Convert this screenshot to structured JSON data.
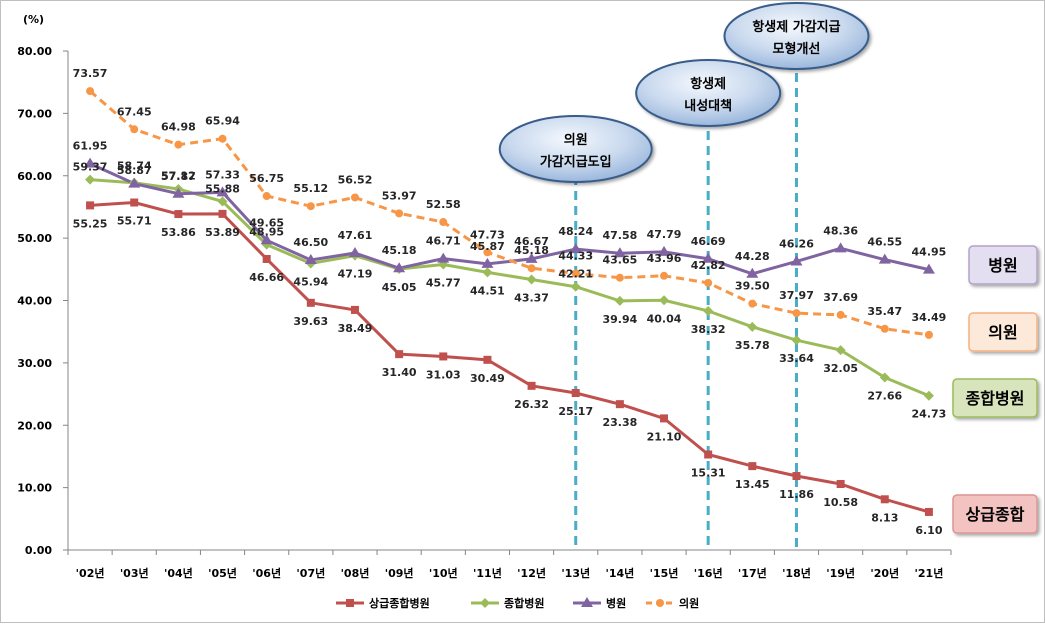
{
  "chart_data": {
    "type": "line",
    "y_unit_label": "(%)",
    "categories": [
      "'02년",
      "'03년",
      "'04년",
      "'05년",
      "'06년",
      "'07년",
      "'08년",
      "'09년",
      "'10년",
      "'11년",
      "'12년",
      "'13년",
      "'14년",
      "'15년",
      "'16년",
      "'17년",
      "'18년",
      "'19년",
      "'20년",
      "'21년"
    ],
    "y_ticks": [
      "0.00",
      "10.00",
      "20.00",
      "30.00",
      "40.00",
      "50.00",
      "60.00",
      "70.00",
      "80.00"
    ],
    "ylim": [
      0,
      80
    ],
    "grid": false,
    "legend_position": "bottom",
    "series": [
      {
        "name": "상급종합병원",
        "color": "#c0504d",
        "marker": "square",
        "dashed": false,
        "values": [
          55.25,
          55.71,
          53.86,
          53.89,
          46.66,
          39.63,
          38.49,
          31.4,
          31.03,
          30.49,
          26.32,
          25.17,
          23.38,
          21.1,
          15.31,
          13.45,
          11.86,
          10.58,
          8.13,
          6.1
        ],
        "labels": [
          "55.25",
          "55.71",
          "53.86",
          "53.89",
          "46.66",
          "39.63",
          "38.49",
          "31.40",
          "31.03",
          "30.49",
          "26.32",
          "25.17",
          "23.38",
          "21.10",
          "15.31",
          "13.45",
          "11.86",
          "10.58",
          "8.13",
          "6.10"
        ]
      },
      {
        "name": "종합병원",
        "color": "#9bbb59",
        "marker": "diamond",
        "dashed": false,
        "values": [
          59.37,
          58.87,
          57.87,
          55.88,
          48.95,
          45.94,
          47.19,
          45.05,
          45.77,
          44.51,
          43.37,
          42.21,
          39.94,
          40.04,
          38.32,
          35.78,
          33.64,
          32.05,
          27.66,
          24.73
        ],
        "labels": [
          "59.37",
          "58.87",
          "57.87",
          "55.88",
          "48.95",
          "45.94",
          "47.19",
          "45.05",
          "45.77",
          "44.51",
          "43.37",
          "42.21",
          "39.94",
          "40.04",
          "38.32",
          "35.78",
          "33.64",
          "32.05",
          "27.66",
          "24.73"
        ]
      },
      {
        "name": "병원",
        "color": "#8064a2",
        "marker": "triangle",
        "dashed": false,
        "values": [
          61.95,
          58.74,
          57.12,
          57.33,
          49.65,
          46.5,
          47.61,
          45.18,
          46.71,
          45.87,
          46.67,
          48.24,
          47.58,
          47.79,
          46.69,
          44.28,
          46.26,
          48.36,
          46.55,
          44.95
        ],
        "labels": [
          "61.95",
          "58.74",
          "57.12",
          "57.33",
          "49.65",
          "46.50",
          "47.61",
          "45.18",
          "46.71",
          "45.87",
          "46.67",
          "48.24",
          "47.58",
          "47.79",
          "46.69",
          "44.28",
          "46.26",
          "48.36",
          "46.55",
          "44.95"
        ]
      },
      {
        "name": "의원",
        "color": "#f79646",
        "marker": "circle",
        "dashed": true,
        "values": [
          73.57,
          67.45,
          64.98,
          65.94,
          56.75,
          55.12,
          56.52,
          53.97,
          52.58,
          47.73,
          45.18,
          44.33,
          43.65,
          43.96,
          42.82,
          39.5,
          37.97,
          37.69,
          35.47,
          34.49
        ],
        "labels": [
          "73.57",
          "67.45",
          "64.98",
          "65.94",
          "56.75",
          "55.12",
          "56.52",
          "53.97",
          "52.58",
          "47.73",
          "45.18",
          "44.33",
          "43.65",
          "43.96",
          "42.82",
          "39.50",
          "37.97",
          "37.69",
          "35.47",
          "34.49"
        ]
      }
    ],
    "annotations": [
      {
        "category_index": 11,
        "lines": [
          "의원",
          "가감지급도입"
        ]
      },
      {
        "category_index": 14,
        "lines": [
          "항생제",
          "내성대책"
        ]
      },
      {
        "category_index": 16,
        "lines": [
          "항생제 가감지급",
          "모형개선"
        ]
      }
    ],
    "side_labels": [
      {
        "text": "병원",
        "series": "병원",
        "bg": "#e4dff0",
        "border": "#b3a2c7"
      },
      {
        "text": "의원",
        "series": "의원",
        "bg": "#fde9d9",
        "border": "#f4b183"
      },
      {
        "text": "종합병원",
        "series": "종합병원",
        "bg": "#d8e4bc",
        "border": "#9bbb59"
      },
      {
        "text": "상급종합",
        "series": "상급종합병원",
        "bg": "#f2c3c1",
        "border": "#d99694"
      }
    ]
  }
}
